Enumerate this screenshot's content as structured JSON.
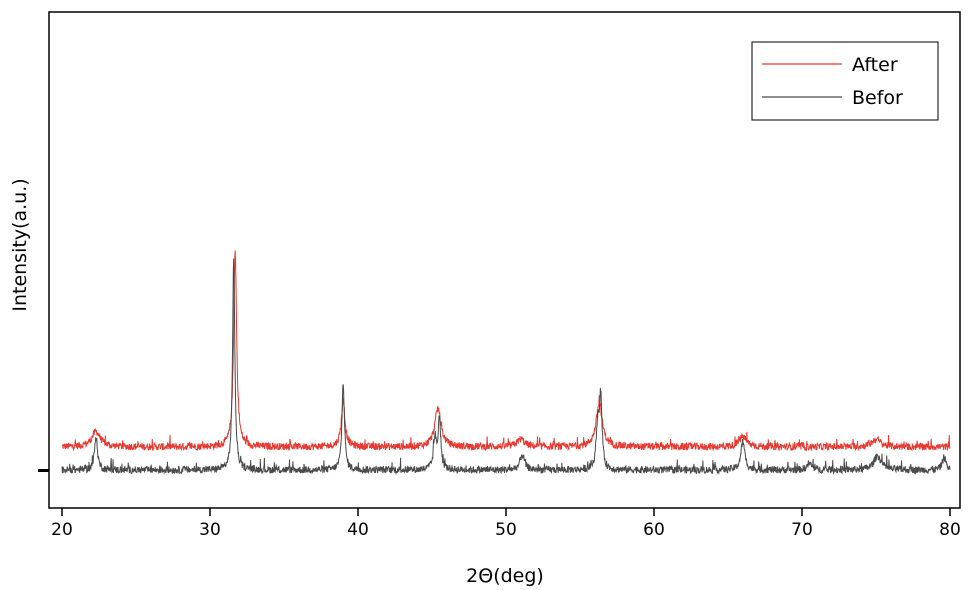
{
  "chart_data": {
    "type": "line",
    "xlabel": "2Θ(deg)",
    "ylabel": "Intensity(a.u.)",
    "xlim": [
      20,
      80
    ],
    "x_ticks": [
      20,
      30,
      40,
      50,
      60,
      70,
      80
    ],
    "y_ticks_labeled": false,
    "grid": false,
    "legend": {
      "position": "top-right",
      "entries": [
        "After",
        "Befor"
      ]
    },
    "series": [
      {
        "name": "After",
        "color": "#e8382f",
        "baseline": 0.9,
        "peaks": [
          {
            "x": 22.3,
            "height": 0.6,
            "width": 0.35
          },
          {
            "x": 31.7,
            "height": 7.6,
            "width": 0.12
          },
          {
            "x": 39.0,
            "height": 1.8,
            "width": 0.15
          },
          {
            "x": 45.4,
            "height": 1.5,
            "width": 0.25
          },
          {
            "x": 51.0,
            "height": 0.3,
            "width": 0.3
          },
          {
            "x": 56.3,
            "height": 1.7,
            "width": 0.25
          },
          {
            "x": 66.0,
            "height": 0.4,
            "width": 0.3
          },
          {
            "x": 75.0,
            "height": 0.3,
            "width": 0.35
          }
        ]
      },
      {
        "name": "Befor",
        "color": "#4a4a4a",
        "baseline": 0.0,
        "peaks": [
          {
            "x": 22.3,
            "height": 1.3,
            "width": 0.12
          },
          {
            "x": 31.6,
            "height": 8.3,
            "width": 0.09
          },
          {
            "x": 39.0,
            "height": 3.4,
            "width": 0.1
          },
          {
            "x": 45.2,
            "height": 1.2,
            "width": 0.12
          },
          {
            "x": 45.5,
            "height": 2.0,
            "width": 0.1
          },
          {
            "x": 51.1,
            "height": 0.6,
            "width": 0.18
          },
          {
            "x": 56.2,
            "height": 1.7,
            "width": 0.12
          },
          {
            "x": 56.4,
            "height": 2.7,
            "width": 0.1
          },
          {
            "x": 66.0,
            "height": 1.1,
            "width": 0.16
          },
          {
            "x": 70.5,
            "height": 0.25,
            "width": 0.2
          },
          {
            "x": 75.1,
            "height": 0.55,
            "width": 0.3
          },
          {
            "x": 79.6,
            "height": 0.5,
            "width": 0.15
          }
        ]
      }
    ]
  }
}
